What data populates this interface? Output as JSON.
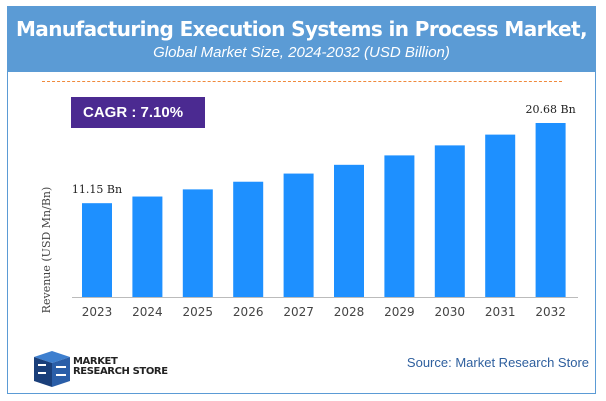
{
  "chart_data": {
    "type": "bar",
    "title": "Manufacturing Execution Systems in Process Market,",
    "subtitle": "Global Market Size, 2024-2032 (USD Billion)",
    "categories": [
      "2023",
      "2024",
      "2025",
      "2026",
      "2027",
      "2028",
      "2029",
      "2030",
      "2031",
      "2032"
    ],
    "values": [
      11.15,
      11.94,
      12.79,
      13.7,
      14.67,
      15.71,
      16.83,
      18.02,
      19.3,
      20.68
    ],
    "data_labels": {
      "first": "11.15 Bn",
      "last": "20.68 Bn"
    },
    "xlabel": "",
    "ylabel": "Revenue (USD Mn/Bn)",
    "ylim": [
      0,
      20.68
    ],
    "grid": false,
    "bar_color": "#1e90ff"
  },
  "cagr": "CAGR : 7.10%",
  "source": "Source: Market Research Store",
  "logo": {
    "line1": "MARKET",
    "line2": "RESEARCH STORE"
  },
  "colors": {
    "header": "#5b9bd5",
    "cagr_bg": "#4b2a91",
    "dash": "#f08a3c"
  }
}
